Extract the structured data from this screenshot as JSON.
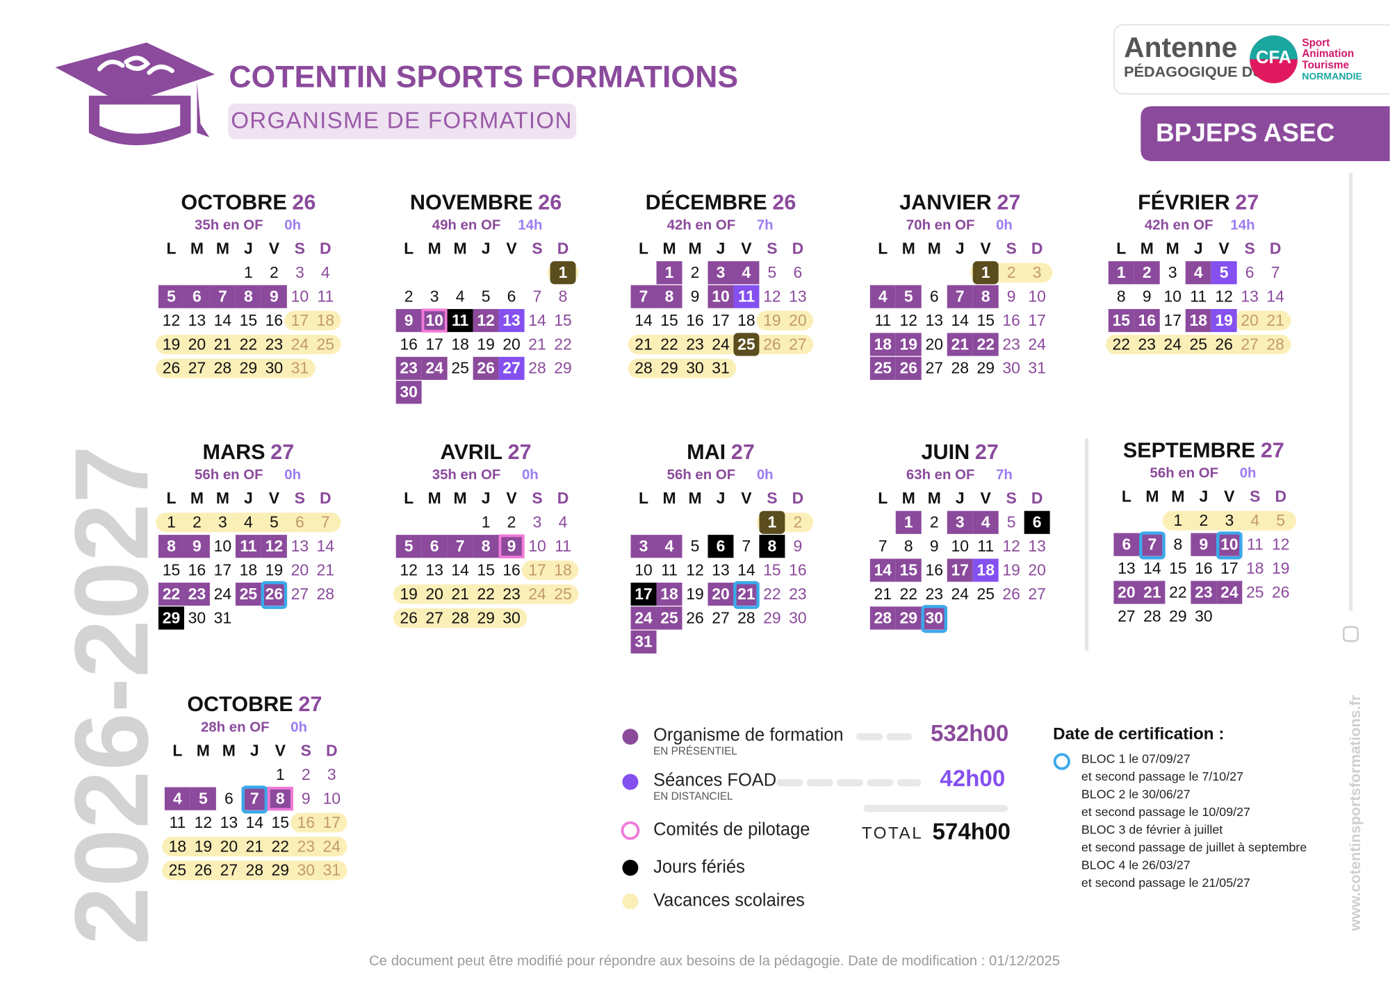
{
  "header": {
    "title": "COTENTIN SPORTS FORMATIONS",
    "subtitle": "ORGANISME DE FORMATION",
    "program": "BPJEPS ASEC"
  },
  "logo": {
    "line1": "Antenne",
    "line2": "PÉDAGOGIQUE DU",
    "badge": "CFA",
    "tags": [
      "Sport",
      "Animation",
      "Tourisme",
      "NORMANDIE"
    ]
  },
  "years": "2026-2027",
  "website": "www.cotentinsportsformations.fr",
  "weekdays": [
    "L",
    "M",
    "M",
    "J",
    "V",
    "S",
    "D"
  ],
  "months": [
    {
      "name": "OCTOBRE",
      "year": "26",
      "of": "35h en OF",
      "foad": "0h",
      "weeks": [
        [
          null,
          null,
          null,
          1,
          2,
          3,
          4
        ],
        [
          5,
          6,
          7,
          8,
          9,
          10,
          11
        ],
        [
          12,
          13,
          14,
          15,
          16,
          17,
          18
        ],
        [
          19,
          20,
          21,
          22,
          23,
          24,
          25
        ],
        [
          26,
          27,
          28,
          29,
          30,
          31,
          null
        ]
      ],
      "presentiel": [
        5,
        6,
        7,
        8,
        9
      ],
      "distanciel": [],
      "pilotage": [],
      "feries": [],
      "vacances": [
        17,
        31
      ],
      "certification": []
    },
    {
      "name": "NOVEMBRE",
      "year": "26",
      "of": "49h en OF",
      "foad": "14h",
      "weeks": [
        [
          null,
          null,
          null,
          null,
          null,
          null,
          1
        ],
        [
          2,
          3,
          4,
          5,
          6,
          7,
          8
        ],
        [
          9,
          10,
          11,
          12,
          13,
          14,
          15
        ],
        [
          16,
          17,
          18,
          19,
          20,
          21,
          22
        ],
        [
          23,
          24,
          25,
          26,
          27,
          28,
          29
        ],
        [
          30,
          null,
          null,
          null,
          null,
          null,
          null
        ]
      ],
      "presentiel": [
        9,
        10,
        12,
        23,
        24,
        26,
        30
      ],
      "distanciel": [
        13,
        27
      ],
      "pilotage": [
        10
      ],
      "feries": [
        1,
        11
      ],
      "vacances": [
        1,
        1
      ],
      "certification": []
    },
    {
      "name": "DÉCEMBRE",
      "year": "26",
      "of": "42h en OF",
      "foad": "7h",
      "weeks": [
        [
          null,
          1,
          2,
          3,
          4,
          5,
          6
        ],
        [
          7,
          8,
          9,
          10,
          11,
          12,
          13
        ],
        [
          14,
          15,
          16,
          17,
          18,
          19,
          20
        ],
        [
          21,
          22,
          23,
          24,
          25,
          26,
          27
        ],
        [
          28,
          29,
          30,
          31,
          null,
          null,
          null
        ]
      ],
      "presentiel": [
        1,
        3,
        4,
        7,
        8,
        10
      ],
      "distanciel": [
        11
      ],
      "pilotage": [],
      "feries": [
        25
      ],
      "vacances": [
        19,
        31
      ],
      "certification": []
    },
    {
      "name": "JANVIER",
      "year": "27",
      "of": "70h en OF",
      "foad": "0h",
      "weeks": [
        [
          null,
          null,
          null,
          null,
          1,
          2,
          3
        ],
        [
          4,
          5,
          6,
          7,
          8,
          9,
          10
        ],
        [
          11,
          12,
          13,
          14,
          15,
          16,
          17
        ],
        [
          18,
          19,
          20,
          21,
          22,
          23,
          24
        ],
        [
          25,
          26,
          27,
          28,
          29,
          30,
          31
        ]
      ],
      "presentiel": [
        4,
        5,
        7,
        8,
        18,
        19,
        21,
        22,
        25,
        26
      ],
      "distanciel": [],
      "pilotage": [],
      "feries": [
        1
      ],
      "vacances": [
        1,
        3
      ],
      "certification": []
    },
    {
      "name": "FÉVRIER",
      "year": "27",
      "of": "42h en OF",
      "foad": "14h",
      "weeks": [
        [
          1,
          2,
          3,
          4,
          5,
          6,
          7
        ],
        [
          8,
          9,
          10,
          11,
          12,
          13,
          14
        ],
        [
          15,
          16,
          17,
          18,
          19,
          20,
          21
        ],
        [
          22,
          23,
          24,
          25,
          26,
          27,
          28
        ]
      ],
      "presentiel": [
        1,
        2,
        4,
        15,
        16,
        18
      ],
      "distanciel": [
        5,
        19
      ],
      "pilotage": [],
      "feries": [],
      "vacances": [
        20,
        28
      ],
      "certification": []
    },
    {
      "name": "MARS",
      "year": "27",
      "of": "56h en OF",
      "foad": "0h",
      "weeks": [
        [
          1,
          2,
          3,
          4,
          5,
          6,
          7
        ],
        [
          8,
          9,
          10,
          11,
          12,
          13,
          14
        ],
        [
          15,
          16,
          17,
          18,
          19,
          20,
          21
        ],
        [
          22,
          23,
          24,
          25,
          26,
          27,
          28
        ],
        [
          29,
          30,
          31,
          null,
          null,
          null,
          null
        ]
      ],
      "presentiel": [
        8,
        9,
        11,
        12,
        22,
        23,
        25,
        26
      ],
      "distanciel": [],
      "pilotage": [],
      "feries": [
        29
      ],
      "vacances": [
        1,
        7
      ],
      "certification": [
        26
      ]
    },
    {
      "name": "AVRIL",
      "year": "27",
      "of": "35h en OF",
      "foad": "0h",
      "weeks": [
        [
          null,
          null,
          null,
          1,
          2,
          3,
          4
        ],
        [
          5,
          6,
          7,
          8,
          9,
          10,
          11
        ],
        [
          12,
          13,
          14,
          15,
          16,
          17,
          18
        ],
        [
          19,
          20,
          21,
          22,
          23,
          24,
          25
        ],
        [
          26,
          27,
          28,
          29,
          30,
          null,
          null
        ]
      ],
      "presentiel": [
        5,
        6,
        7,
        8,
        9
      ],
      "distanciel": [],
      "pilotage": [
        9
      ],
      "feries": [],
      "vacances": [
        17,
        30
      ],
      "certification": []
    },
    {
      "name": "MAI",
      "year": "27",
      "of": "56h en OF",
      "foad": "0h",
      "weeks": [
        [
          null,
          null,
          null,
          null,
          null,
          1,
          2
        ],
        [
          3,
          4,
          5,
          6,
          7,
          8,
          9
        ],
        [
          10,
          11,
          12,
          13,
          14,
          15,
          16
        ],
        [
          17,
          18,
          19,
          20,
          21,
          22,
          23
        ],
        [
          24,
          25,
          26,
          27,
          28,
          29,
          30
        ],
        [
          31,
          null,
          null,
          null,
          null,
          null,
          null
        ]
      ],
      "presentiel": [
        3,
        4,
        18,
        20,
        21,
        24,
        25,
        31
      ],
      "distanciel": [],
      "pilotage": [],
      "feries": [
        1,
        6,
        8,
        17
      ],
      "vacances": [
        1,
        2
      ],
      "certification": [
        21
      ]
    },
    {
      "name": "JUIN",
      "year": "27",
      "of": "63h en OF",
      "foad": "7h",
      "weeks": [
        [
          null,
          1,
          2,
          3,
          4,
          5,
          6
        ],
        [
          7,
          8,
          9,
          10,
          11,
          12,
          13
        ],
        [
          14,
          15,
          16,
          17,
          18,
          19,
          20
        ],
        [
          21,
          22,
          23,
          24,
          25,
          26,
          27
        ],
        [
          28,
          29,
          30,
          null,
          null,
          null,
          null
        ]
      ],
      "presentiel": [
        1,
        3,
        4,
        14,
        15,
        17,
        28,
        29,
        30
      ],
      "distanciel": [
        18
      ],
      "pilotage": [],
      "feries": [
        6
      ],
      "vacances": [],
      "certification": [
        30
      ]
    },
    {
      "name": "SEPTEMBRE",
      "year": "27",
      "of": "56h en OF",
      "foad": "0h",
      "weeks": [
        [
          null,
          null,
          1,
          2,
          3,
          4,
          5
        ],
        [
          6,
          7,
          8,
          9,
          10,
          11,
          12
        ],
        [
          13,
          14,
          15,
          16,
          17,
          18,
          19
        ],
        [
          20,
          21,
          22,
          23,
          24,
          25,
          26
        ],
        [
          27,
          28,
          29,
          30,
          null,
          null,
          null
        ]
      ],
      "presentiel": [
        6,
        7,
        9,
        10,
        20,
        21,
        23,
        24
      ],
      "distanciel": [],
      "pilotage": [],
      "feries": [],
      "vacances": [
        1,
        5
      ],
      "certification": [
        7,
        10
      ]
    },
    {
      "name": "OCTOBRE",
      "year": "27",
      "of": "28h en OF",
      "foad": "0h",
      "weeks": [
        [
          null,
          null,
          null,
          null,
          1,
          2,
          3
        ],
        [
          4,
          5,
          6,
          7,
          8,
          9,
          10
        ],
        [
          11,
          12,
          13,
          14,
          15,
          16,
          17
        ],
        [
          18,
          19,
          20,
          21,
          22,
          23,
          24
        ],
        [
          25,
          26,
          27,
          28,
          29,
          30,
          31
        ]
      ],
      "presentiel": [
        4,
        5,
        7,
        8
      ],
      "distanciel": [],
      "pilotage": [
        8
      ],
      "feries": [],
      "vacances": [
        16,
        31
      ],
      "certification": [
        7
      ]
    }
  ],
  "legend": {
    "items": [
      {
        "label": "Organisme de formation",
        "sub": "EN PRÉSENTIEL",
        "total": "532h00"
      },
      {
        "label": "Séances FOAD",
        "sub": "EN DISTANCIEL",
        "total": "42h00"
      },
      {
        "label": "Comités de pilotage"
      },
      {
        "label": "Jours fériés"
      },
      {
        "label": "Vacances scolaires"
      }
    ],
    "total_label": "TOTAL",
    "total": "574h00"
  },
  "certification": {
    "title": "Date de certification :",
    "lines": [
      "BLOC 1 le 07/09/27",
      "et second passage le 7/10/27",
      "BLOC 2 le 30/06/27",
      "et second passage le 10/09/27",
      "BLOC 3 de février à juillet",
      "et second passage de juillet à septembre",
      "BLOC 4 le 26/03/27",
      "et second passage le 21/05/27"
    ]
  },
  "footer": "Ce document peut être modifié pour répondre aux besoins de la pédagogie. Date de modification : 01/12/2025"
}
